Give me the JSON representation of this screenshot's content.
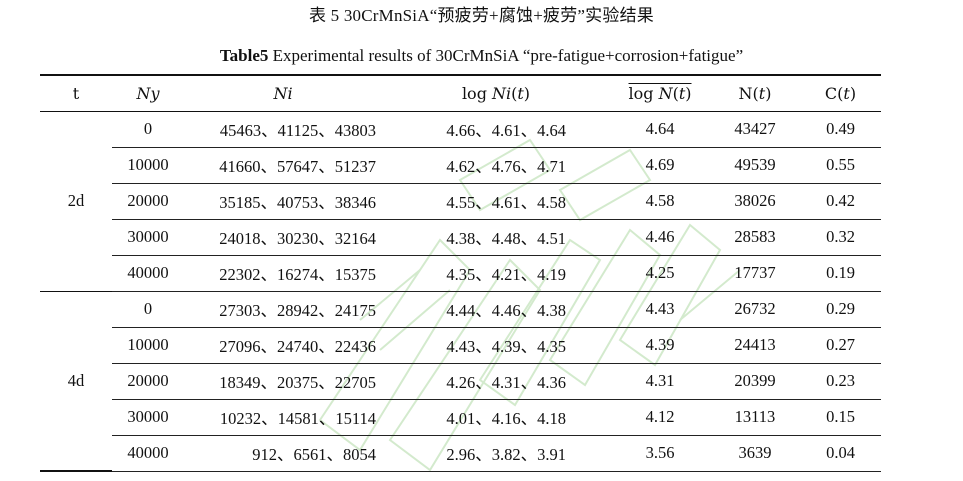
{
  "title_cn": "表 5 30CrMnSiA“预疲劳+腐蚀+疲劳”实验结果",
  "title_en_label": "Table5",
  "title_en_text": " Experimental results of 30CrMnSiA “pre-fatigue+corrosion+fatigue”",
  "table": {
    "headers": [
      "t",
      "Ny",
      "Ni",
      "log Ni(t)",
      "log N(t)",
      "N(t)",
      "C(t)"
    ],
    "header_display": {
      "t": "t",
      "ny": "𝑁𝑦",
      "ni": "𝑁𝑖",
      "log_ni": "log 𝑁𝑖(𝑡)",
      "log_n_bar": "log 𝑁(𝑡)",
      "n_t": "N(𝑡)",
      "c_t": "C(𝑡)"
    },
    "groups": [
      {
        "label": "2d",
        "rows": [
          {
            "ny": "0",
            "ni": "45463、41125、43803",
            "log_ni": "4.66、4.61、4.64",
            "log_n_bar": "4.64",
            "n_t": "43427",
            "c_t": "0.49"
          },
          {
            "ny": "10000",
            "ni": "41660、57647、51237",
            "log_ni": "4.62、4.76、4.71",
            "log_n_bar": "4.69",
            "n_t": "49539",
            "c_t": "0.55"
          },
          {
            "ny": "20000",
            "ni": "35185、40753、38346",
            "log_ni": "4.55、4.61、4.58",
            "log_n_bar": "4.58",
            "n_t": "38026",
            "c_t": "0.42"
          },
          {
            "ny": "30000",
            "ni": "24018、30230、32164",
            "log_ni": "4.38、4.48、4.51",
            "log_n_bar": "4.46",
            "n_t": "28583",
            "c_t": "0.32"
          },
          {
            "ny": "40000",
            "ni": "22302、16274、15375",
            "log_ni": "4.35、4.21、4.19",
            "log_n_bar": "4.25",
            "n_t": "17737",
            "c_t": "0.19"
          }
        ]
      },
      {
        "label": "4d",
        "rows": [
          {
            "ny": "0",
            "ni": "27303、28942、24175",
            "log_ni": "4.44、4.46、4.38",
            "log_n_bar": "4.43",
            "n_t": "26732",
            "c_t": "0.29"
          },
          {
            "ny": "10000",
            "ni": "27096、24740、22436",
            "log_ni": "4.43、4.39、4.35",
            "log_n_bar": "4.39",
            "n_t": "24413",
            "c_t": "0.27"
          },
          {
            "ny": "20000",
            "ni": "18349、20375、22705",
            "log_ni": "4.26、4.31、4.36",
            "log_n_bar": "4.31",
            "n_t": "20399",
            "c_t": "0.23"
          },
          {
            "ny": "30000",
            "ni": "10232、14581、15114",
            "log_ni": "4.01、4.16、4.18",
            "log_n_bar": "4.12",
            "n_t": "13113",
            "c_t": "0.15"
          },
          {
            "ny": "40000",
            "ni": "912、6561、8054",
            "log_ni": "2.96、3.82、3.91",
            "log_n_bar": "3.56",
            "n_t": "3639",
            "c_t": "0.04"
          }
        ]
      }
    ]
  },
  "colors": {
    "text": "#111111",
    "rule": "#111111",
    "watermark": "#cfe8c8"
  }
}
